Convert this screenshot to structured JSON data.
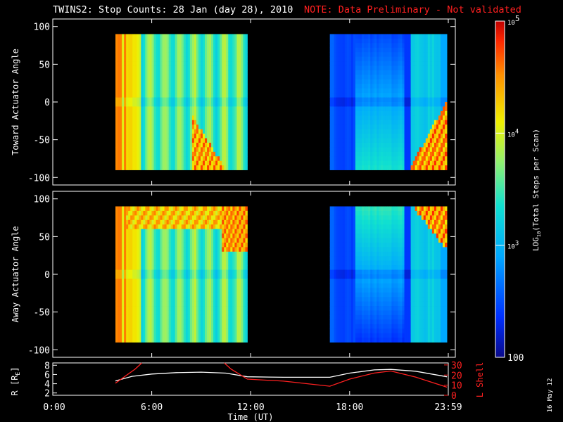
{
  "title": {
    "main": "TWINS2: Stop Counts: 28 Jan (day  28), 2010",
    "note": "NOTE: Data Preliminary - Not validated"
  },
  "colors": {
    "background": "#000000",
    "foreground": "#ffffff",
    "note": "#ff2020",
    "lshell": "#ff2020",
    "radius": "#ffffff"
  },
  "chart_data": [
    {
      "type": "heatmap",
      "panel": "top",
      "ylabel": "Toward Actuator Angle",
      "ylim": [
        -110,
        110
      ],
      "yticks": [
        -100,
        -50,
        0,
        50,
        100
      ],
      "xlim": [
        0,
        24
      ],
      "data_spans_hours": [
        [
          3.8,
          11.8
        ],
        [
          16.8,
          23.9
        ]
      ],
      "angle_range": [
        -90,
        90
      ]
    },
    {
      "type": "heatmap",
      "panel": "middle",
      "ylabel": "Away Actuator Angle",
      "ylim": [
        -110,
        110
      ],
      "yticks": [
        -100,
        -50,
        0,
        50,
        100
      ],
      "xlim": [
        0,
        24
      ],
      "data_spans_hours": [
        [
          3.8,
          11.8
        ],
        [
          16.8,
          23.9
        ]
      ],
      "angle_range": [
        -90,
        90
      ]
    },
    {
      "type": "line",
      "panel": "bottom",
      "xlabel": "Time (UT)",
      "xticks": [
        "0:00",
        "6:00",
        "12:00",
        "18:00",
        "23:59"
      ],
      "xtick_hours": [
        0,
        6,
        12,
        18,
        23.983
      ],
      "ylabel_left": "R [R",
      "ylabel_left_sub": "E",
      "ylabel_left_end": "]",
      "yticks_left": [
        2,
        4,
        6,
        8
      ],
      "ylim_left": [
        1.5,
        8.5
      ],
      "ylabel_right": "L Shell",
      "yticks_right": [
        10,
        20,
        30
      ],
      "ylim_right": [
        0,
        32
      ],
      "series": [
        {
          "name": "R",
          "axis": "left",
          "color": "#ffffff",
          "x": [
            3.8,
            4.8,
            6,
            7.5,
            9,
            10.5,
            11.8,
            14,
            16.8,
            18,
            19.5,
            20.5,
            22,
            23.9
          ],
          "y": [
            4.6,
            5.6,
            6.1,
            6.4,
            6.5,
            6.3,
            5.5,
            5.4,
            5.4,
            6.3,
            7.0,
            7.1,
            6.7,
            5.5
          ]
        },
        {
          "name": "L Shell",
          "axis": "right",
          "color": "#ff2020",
          "x": [
            3.8,
            5.0,
            5.4,
            null,
            10.4,
            10.8,
            11.8,
            14,
            16.8,
            18,
            19.5,
            20.5,
            22,
            23.9
          ],
          "y": [
            12,
            26,
            32,
            null,
            32,
            26,
            16,
            14,
            9,
            16,
            22,
            24,
            18,
            8
          ]
        }
      ]
    },
    {
      "type": "colorbar",
      "label": "LOG",
      "label_sub": "10",
      "label_end": "(Total Steps per Scan)",
      "tick_values": [
        100,
        1000,
        10000,
        100000
      ],
      "tick_labels": [
        "100",
        "10",
        "10",
        "10"
      ],
      "tick_exponents": [
        "",
        "3",
        "4",
        "5"
      ]
    }
  ],
  "footer": {
    "date_stamp": "16 May 12"
  }
}
